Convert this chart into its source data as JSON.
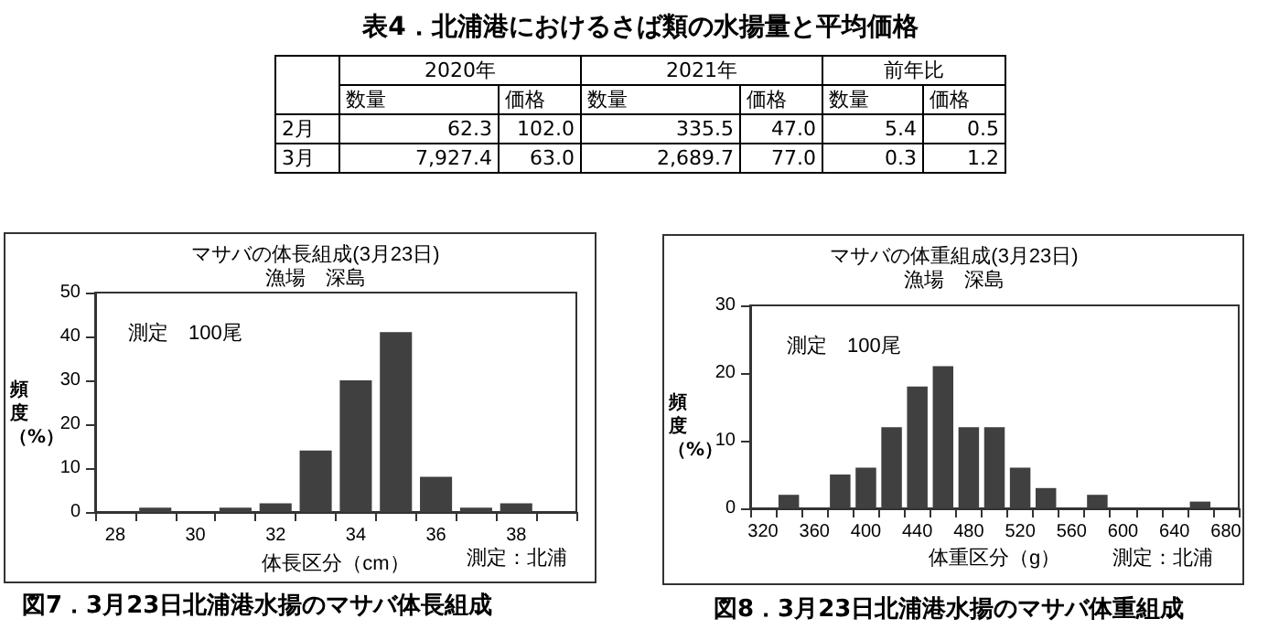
{
  "chart_data": [
    {
      "type": "other",
      "title": "表4．北浦港におけるさば類の水揚量と平均価格",
      "annotations": [
        "2020年",
        "2021年",
        "前年比",
        "数量",
        "価格",
        "数量",
        "価格",
        "数量",
        "価格",
        "2月",
        "62.3",
        "102.0",
        "335.5",
        "47.0",
        "5.4",
        "0.5",
        "3月",
        "7,927.4",
        "63.0",
        "2,689.7",
        "77.0",
        "0.3",
        "1.2"
      ]
    },
    {
      "type": "bar",
      "title": "マサバの体長組成(3月23日)",
      "subtitle": "漁場　深島",
      "xlabel": "体長区分（cm）",
      "ylabel": "頻度（%）",
      "categories": [
        "28",
        null,
        "30",
        null,
        "32",
        null,
        "34",
        null,
        "36",
        null,
        "38",
        null
      ],
      "values": [
        0,
        1,
        0,
        1,
        2,
        14,
        30,
        41,
        8,
        1,
        2,
        0
      ],
      "color": "#404040",
      "ylim": [
        0,
        50
      ],
      "yticks": [
        0,
        10,
        20,
        30,
        40,
        50
      ],
      "annotations": [
        "測定　100尾",
        "測定：北浦",
        "図7．3月23日北浦港水揚のマサバ体長組成"
      ]
    },
    {
      "type": "bar",
      "title": "マサバの体重組成(3月23日)",
      "subtitle": "漁場　深島",
      "xlabel": "体重区分（g）",
      "ylabel": "頻度（%）",
      "categories": [
        "320",
        null,
        "360",
        null,
        "400",
        null,
        "440",
        null,
        "480",
        null,
        "520",
        null,
        "560",
        null,
        "600",
        null,
        "640",
        null,
        "680"
      ],
      "values": [
        0,
        2,
        0,
        5,
        6,
        12,
        18,
        21,
        12,
        12,
        6,
        3,
        0,
        2,
        0,
        0,
        0,
        1,
        0
      ],
      "color": "#404040",
      "ylim": [
        0,
        30
      ],
      "yticks": [
        0,
        10,
        20,
        30
      ],
      "annotations": [
        "測定　100尾",
        "測定：北浦",
        "図8．3月23日北浦港水揚のマサバ体重組成"
      ]
    }
  ]
}
